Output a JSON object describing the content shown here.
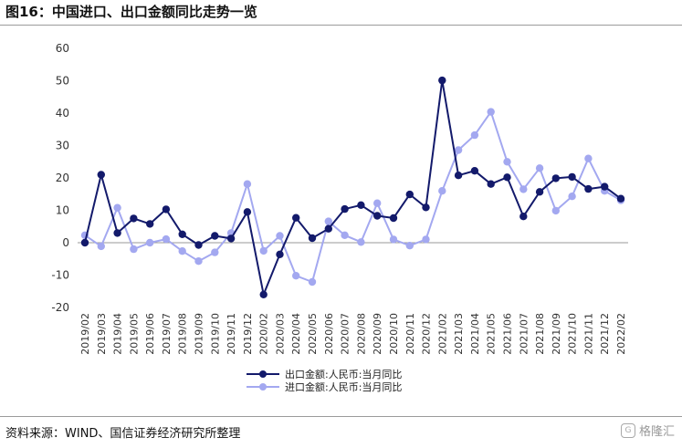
{
  "title": "图16：中国进口、出口金额同比走势一览",
  "source": "资料来源：WIND、国信证券经济研究所整理",
  "watermark": "格隆汇",
  "colors": {
    "export": "#131a6b",
    "import": "#a3a8f0"
  },
  "chart_data": {
    "type": "line",
    "ylim": [
      -20,
      60
    ],
    "yticks": [
      -20,
      -10,
      0,
      10,
      20,
      30,
      40,
      50,
      60
    ],
    "grid": false,
    "legend": "bottom-center",
    "x": [
      "2019/02",
      "2019/03",
      "2019/04",
      "2019/05",
      "2019/06",
      "2019/07",
      "2019/08",
      "2019/09",
      "2019/10",
      "2019/11",
      "2019/12",
      "2020/02",
      "2020/03",
      "2020/04",
      "2020/05",
      "2020/06",
      "2020/07",
      "2020/08",
      "2020/09",
      "2020/10",
      "2020/11",
      "2020/12",
      "2021/02",
      "2021/03",
      "2021/04",
      "2021/05",
      "2021/06",
      "2021/07",
      "2021/08",
      "2021/09",
      "2021/10",
      "2021/11",
      "2021/12",
      "2022/02"
    ],
    "series": [
      {
        "name": "出口金额:人民币:当月同比",
        "values": [
          0,
          21,
          3,
          7.5,
          5.8,
          10.3,
          2.6,
          -0.7,
          2.1,
          1.3,
          9.5,
          -16,
          -3.6,
          7.7,
          1.4,
          4.3,
          10.4,
          11.6,
          8.3,
          7.6,
          14.9,
          10.9,
          50.1,
          20.8,
          22.2,
          18.1,
          20.2,
          8.1,
          15.7,
          19.9,
          20.3,
          16.6,
          17.3,
          13.6
        ]
      },
      {
        "name": "进口金额:人民币:当月同比",
        "values": [
          2.3,
          -1.1,
          10.8,
          -2,
          0,
          1.1,
          -2.6,
          -5.7,
          -3,
          3,
          18.1,
          -2.5,
          2.1,
          -10.2,
          -12.1,
          6.6,
          2.3,
          0.2,
          12.2,
          1,
          -0.9,
          1,
          16,
          28.6,
          33.2,
          40.4,
          25,
          16.5,
          23,
          9.9,
          14.3,
          26,
          16,
          13.1
        ]
      }
    ]
  }
}
